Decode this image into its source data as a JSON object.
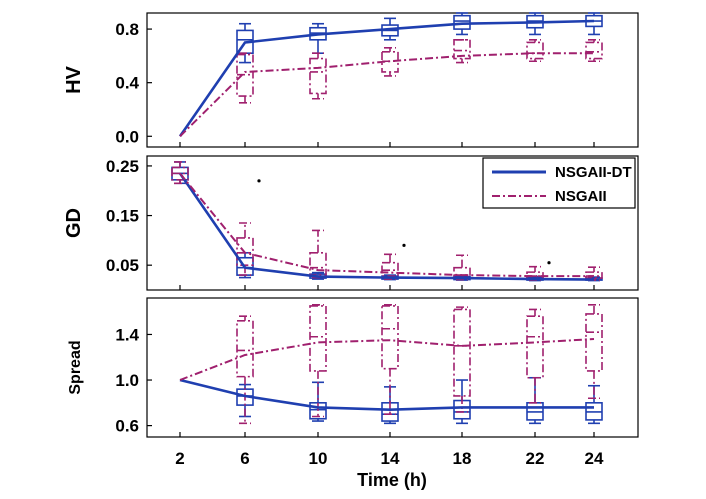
{
  "colors": {
    "nsgaii_dt": "#1f3fb0",
    "nsgaii": "#a0206e",
    "frame": "#000000"
  },
  "x_ticks": [
    2,
    6,
    10,
    14,
    18,
    22,
    24
  ],
  "xlabel": "Time (h)",
  "legend": [
    {
      "label": "NSGAII-DT",
      "style": "solid"
    },
    {
      "label": "NSGAII",
      "style": "dashdot"
    }
  ],
  "chart_data": [
    {
      "type": "line",
      "ylabel": "HV",
      "ylim": [
        -0.08,
        0.92
      ],
      "yticks": [
        "0.0",
        "0.4",
        "0.8"
      ],
      "ytick_values": [
        0.0,
        0.4,
        0.8
      ],
      "x": [
        2,
        6,
        10,
        14,
        18,
        22,
        24
      ],
      "series": [
        {
          "name": "NSGAII-DT",
          "values": [
            0.0,
            0.7,
            0.76,
            0.8,
            0.84,
            0.85,
            0.86
          ]
        },
        {
          "name": "NSGAII",
          "values": [
            0.0,
            0.48,
            0.51,
            0.56,
            0.6,
            0.62,
            0.62
          ]
        }
      ],
      "boxes": [
        {
          "series": "NSGAII-DT",
          "x": 6,
          "whisker_low": 0.55,
          "q1": 0.62,
          "median": 0.72,
          "q3": 0.79,
          "whisker_high": 0.84
        },
        {
          "series": "NSGAII-DT",
          "x": 10,
          "whisker_low": 0.62,
          "q1": 0.72,
          "median": 0.77,
          "q3": 0.81,
          "whisker_high": 0.84
        },
        {
          "series": "NSGAII-DT",
          "x": 14,
          "whisker_low": 0.72,
          "q1": 0.75,
          "median": 0.79,
          "q3": 0.83,
          "whisker_high": 0.88
        },
        {
          "series": "NSGAII-DT",
          "x": 18,
          "whisker_low": 0.76,
          "q1": 0.8,
          "median": 0.86,
          "q3": 0.9,
          "whisker_high": 0.92
        },
        {
          "series": "NSGAII-DT",
          "x": 22,
          "whisker_low": 0.76,
          "q1": 0.81,
          "median": 0.86,
          "q3": 0.9,
          "whisker_high": 0.92
        },
        {
          "series": "NSGAII-DT",
          "x": 24,
          "whisker_low": 0.76,
          "q1": 0.82,
          "median": 0.86,
          "q3": 0.9,
          "whisker_high": 0.92
        },
        {
          "series": "NSGAII",
          "x": 6,
          "whisker_low": 0.25,
          "q1": 0.3,
          "median": 0.46,
          "q3": 0.61,
          "whisker_high": 0.62
        },
        {
          "series": "NSGAII",
          "x": 10,
          "whisker_low": 0.28,
          "q1": 0.32,
          "median": 0.48,
          "q3": 0.58,
          "whisker_high": 0.62
        },
        {
          "series": "NSGAII",
          "x": 14,
          "whisker_low": 0.45,
          "q1": 0.48,
          "median": 0.56,
          "q3": 0.63,
          "whisker_high": 0.66
        },
        {
          "series": "NSGAII",
          "x": 18,
          "whisker_low": 0.55,
          "q1": 0.58,
          "median": 0.64,
          "q3": 0.72,
          "whisker_high": 0.72
        },
        {
          "series": "NSGAII",
          "x": 22,
          "whisker_low": 0.56,
          "q1": 0.58,
          "median": 0.62,
          "q3": 0.7,
          "whisker_high": 0.72
        },
        {
          "series": "NSGAII",
          "x": 24,
          "whisker_low": 0.56,
          "q1": 0.58,
          "median": 0.63,
          "q3": 0.7,
          "whisker_high": 0.72
        }
      ],
      "outliers": []
    },
    {
      "type": "line",
      "ylabel": "GD",
      "ylim": [
        0.0,
        0.27
      ],
      "yticks": [
        "0.05",
        "0.15",
        "0.25"
      ],
      "ytick_values": [
        0.05,
        0.15,
        0.25
      ],
      "x": [
        2,
        6,
        10,
        14,
        18,
        22,
        24
      ],
      "series": [
        {
          "name": "NSGAII-DT",
          "values": [
            0.235,
            0.045,
            0.027,
            0.025,
            0.024,
            0.022,
            0.021
          ]
        },
        {
          "name": "NSGAII",
          "values": [
            0.235,
            0.075,
            0.04,
            0.035,
            0.03,
            0.028,
            0.028
          ]
        }
      ],
      "boxes": [
        {
          "series": "NSGAII-DT",
          "x": 2,
          "whisker_low": 0.215,
          "q1": 0.222,
          "median": 0.235,
          "q3": 0.247,
          "whisker_high": 0.258
        },
        {
          "series": "NSGAII-DT",
          "x": 6,
          "whisker_low": 0.025,
          "q1": 0.03,
          "median": 0.045,
          "q3": 0.065,
          "whisker_high": 0.075
        },
        {
          "series": "NSGAII-DT",
          "x": 10,
          "whisker_low": 0.022,
          "q1": 0.024,
          "median": 0.028,
          "q3": 0.032,
          "whisker_high": 0.035
        },
        {
          "series": "NSGAII-DT",
          "x": 14,
          "whisker_low": 0.021,
          "q1": 0.022,
          "median": 0.025,
          "q3": 0.028,
          "whisker_high": 0.03
        },
        {
          "series": "NSGAII-DT",
          "x": 18,
          "whisker_low": 0.02,
          "q1": 0.021,
          "median": 0.024,
          "q3": 0.027,
          "whisker_high": 0.029
        },
        {
          "series": "NSGAII-DT",
          "x": 22,
          "whisker_low": 0.019,
          "q1": 0.02,
          "median": 0.022,
          "q3": 0.025,
          "whisker_high": 0.027
        },
        {
          "series": "NSGAII-DT",
          "x": 24,
          "whisker_low": 0.019,
          "q1": 0.02,
          "median": 0.021,
          "q3": 0.024,
          "whisker_high": 0.026
        },
        {
          "series": "NSGAII",
          "x": 2,
          "whisker_low": 0.215,
          "q1": 0.222,
          "median": 0.235,
          "q3": 0.247,
          "whisker_high": 0.258
        },
        {
          "series": "NSGAII",
          "x": 6,
          "whisker_low": 0.03,
          "q1": 0.05,
          "median": 0.075,
          "q3": 0.105,
          "whisker_high": 0.135
        },
        {
          "series": "NSGAII",
          "x": 10,
          "whisker_low": 0.025,
          "q1": 0.03,
          "median": 0.045,
          "q3": 0.075,
          "whisker_high": 0.12
        },
        {
          "series": "NSGAII",
          "x": 14,
          "whisker_low": 0.022,
          "q1": 0.028,
          "median": 0.04,
          "q3": 0.055,
          "whisker_high": 0.072
        },
        {
          "series": "NSGAII",
          "x": 18,
          "whisker_low": 0.021,
          "q1": 0.025,
          "median": 0.03,
          "q3": 0.045,
          "whisker_high": 0.07
        },
        {
          "series": "NSGAII",
          "x": 22,
          "whisker_low": 0.02,
          "q1": 0.023,
          "median": 0.028,
          "q3": 0.036,
          "whisker_high": 0.047
        },
        {
          "series": "NSGAII",
          "x": 24,
          "whisker_low": 0.02,
          "q1": 0.024,
          "median": 0.028,
          "q3": 0.036,
          "whisker_high": 0.046
        }
      ],
      "outliers": [
        {
          "series": "NSGAII",
          "x": 6,
          "y": 0.22
        },
        {
          "series": "NSGAII",
          "x": 14,
          "y": 0.09
        },
        {
          "series": "NSGAII",
          "x": 22,
          "y": 0.055
        }
      ]
    },
    {
      "type": "line",
      "ylabel": "Spread",
      "ylim": [
        0.5,
        1.72
      ],
      "yticks": [
        "0.6",
        "1.0",
        "1.4"
      ],
      "ytick_values": [
        0.6,
        1.0,
        1.4
      ],
      "x": [
        2,
        6,
        10,
        14,
        18,
        22,
        24
      ],
      "series": [
        {
          "name": "NSGAII-DT",
          "values": [
            1.0,
            0.86,
            0.76,
            0.74,
            0.76,
            0.76,
            0.76
          ]
        },
        {
          "name": "NSGAII",
          "values": [
            1.0,
            1.22,
            1.33,
            1.35,
            1.3,
            1.33,
            1.36
          ]
        }
      ],
      "boxes": [
        {
          "series": "NSGAII-DT",
          "x": 6,
          "whisker_low": 0.68,
          "q1": 0.78,
          "median": 0.86,
          "q3": 0.92,
          "whisker_high": 0.96
        },
        {
          "series": "NSGAII-DT",
          "x": 10,
          "whisker_low": 0.64,
          "q1": 0.66,
          "median": 0.74,
          "q3": 0.8,
          "whisker_high": 0.98
        },
        {
          "series": "NSGAII-DT",
          "x": 14,
          "whisker_low": 0.62,
          "q1": 0.64,
          "median": 0.7,
          "q3": 0.8,
          "whisker_high": 0.94
        },
        {
          "series": "NSGAII-DT",
          "x": 18,
          "whisker_low": 0.62,
          "q1": 0.66,
          "median": 0.72,
          "q3": 0.82,
          "whisker_high": 1.0
        },
        {
          "series": "NSGAII-DT",
          "x": 22,
          "whisker_low": 0.62,
          "q1": 0.65,
          "median": 0.72,
          "q3": 0.8,
          "whisker_high": 1.02
        },
        {
          "series": "NSGAII-DT",
          "x": 24,
          "whisker_low": 0.62,
          "q1": 0.65,
          "median": 0.72,
          "q3": 0.8,
          "whisker_high": 0.95
        },
        {
          "series": "NSGAII",
          "x": 6,
          "whisker_low": 0.62,
          "q1": 1.03,
          "median": 1.26,
          "q3": 1.52,
          "whisker_high": 1.56
        },
        {
          "series": "NSGAII",
          "x": 10,
          "whisker_low": 0.68,
          "q1": 1.08,
          "median": 1.38,
          "q3": 1.65,
          "whisker_high": 1.66
        },
        {
          "series": "NSGAII",
          "x": 14,
          "whisker_low": 0.7,
          "q1": 1.1,
          "median": 1.45,
          "q3": 1.65,
          "whisker_high": 1.66
        },
        {
          "series": "NSGAII",
          "x": 18,
          "whisker_low": 0.72,
          "q1": 0.86,
          "median": 1.3,
          "q3": 1.62,
          "whisker_high": 1.64
        },
        {
          "series": "NSGAII",
          "x": 22,
          "whisker_low": 0.8,
          "q1": 1.02,
          "median": 1.38,
          "q3": 1.56,
          "whisker_high": 1.62
        },
        {
          "series": "NSGAII",
          "x": 24,
          "whisker_low": 0.84,
          "q1": 1.08,
          "median": 1.42,
          "q3": 1.58,
          "whisker_high": 1.66
        }
      ],
      "outliers": []
    }
  ]
}
